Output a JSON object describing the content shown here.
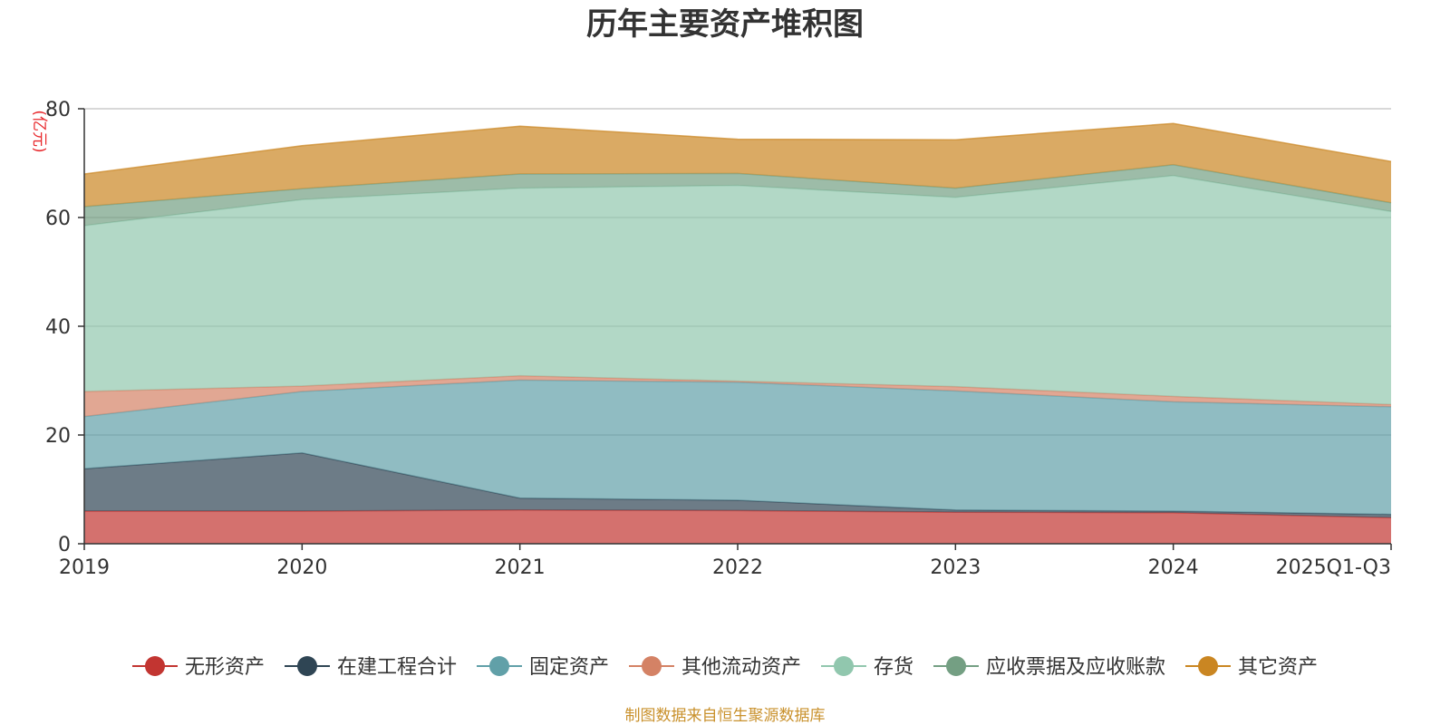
{
  "chart_data": {
    "type": "area",
    "stacked": true,
    "title": "历年主要资产堆积图",
    "unit_label": "(亿元)",
    "x": [
      "2019",
      "2020",
      "2021",
      "2022",
      "2023",
      "2024",
      "2025Q1-Q3"
    ],
    "y_ticks": [
      "0",
      "20",
      "40",
      "60",
      "80"
    ],
    "ylim": [
      0,
      80
    ],
    "grid": true,
    "legend_position": "bottom",
    "series": [
      {
        "name": "无形资产",
        "color": "#c23531",
        "values": [
          6.0,
          6.0,
          6.2,
          6.1,
          5.8,
          5.7,
          4.8
        ]
      },
      {
        "name": "在建工程合计",
        "color": "#2f4554",
        "values": [
          7.8,
          10.7,
          2.2,
          1.9,
          0.4,
          0.3,
          0.6
        ]
      },
      {
        "name": "固定资产",
        "color": "#61a0a8",
        "values": [
          9.6,
          11.3,
          21.7,
          21.7,
          21.9,
          20.1,
          19.8
        ]
      },
      {
        "name": "其他流动资产",
        "color": "#d48265",
        "values": [
          4.6,
          1.0,
          0.8,
          0.2,
          0.8,
          1.0,
          0.4
        ]
      },
      {
        "name": "存货",
        "color": "#91c7ae",
        "values": [
          30.5,
          34.3,
          34.5,
          36.0,
          34.8,
          40.6,
          35.5
        ]
      },
      {
        "name": "应收票据及应收账款",
        "color": "#749f83",
        "values": [
          3.5,
          2.0,
          2.6,
          2.2,
          1.7,
          2.0,
          1.6
        ]
      },
      {
        "name": "其它资产",
        "color": "#ca8622",
        "values": [
          6.0,
          7.9,
          8.8,
          6.3,
          8.9,
          7.6,
          7.6
        ]
      }
    ],
    "source": "制图数据来自恒生聚源数据库"
  }
}
